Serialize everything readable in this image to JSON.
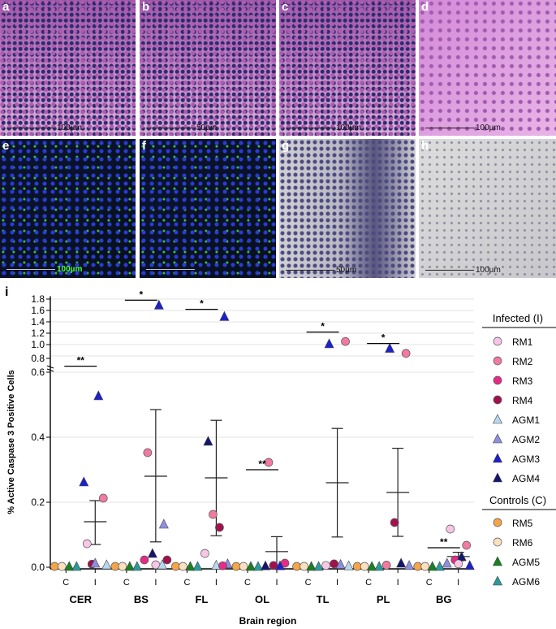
{
  "panels": [
    {
      "label": "a",
      "scale": "100µm",
      "style": "he"
    },
    {
      "label": "b",
      "scale": "50µm",
      "style": "he"
    },
    {
      "label": "c",
      "scale": "100µm",
      "style": "he"
    },
    {
      "label": "d",
      "scale": "100µm",
      "style": "he-light"
    },
    {
      "label": "e",
      "scale": "100µm",
      "style": "fluor"
    },
    {
      "label": "f",
      "scale": "",
      "style": "fluor"
    },
    {
      "label": "g",
      "scale": "50µm",
      "style": "ihc"
    },
    {
      "label": "h",
      "scale": "100µm",
      "style": "ihc-light"
    }
  ],
  "chart_data": {
    "type": "scatter",
    "panel_label": "i",
    "xlabel": "Brain region",
    "ylabel": "% Active Caspase 3 Positive Cells",
    "categories": [
      "CER",
      "BS",
      "FL",
      "OL",
      "TL",
      "PL",
      "BG"
    ],
    "subcategories": [
      "C",
      "I"
    ],
    "y_lower_ticks": [
      "0.0",
      "0.2",
      "0.4",
      "0.6"
    ],
    "y_upper_ticks": [
      "1.0",
      "1.2",
      "1.4",
      "1.6",
      "1.8"
    ],
    "y_upper_extra_tick": "0.8",
    "ylim_lower": [
      0,
      0.6
    ],
    "ylim_upper": [
      0.8,
      1.8
    ],
    "significance": [
      {
        "region": "CER",
        "label": "**",
        "y": 0.62
      },
      {
        "region": "BS",
        "label": "*",
        "y": 1.78
      },
      {
        "region": "FL",
        "label": "*",
        "y": 1.62
      },
      {
        "region": "OL",
        "label": "**",
        "y": 0.3
      },
      {
        "region": "TL",
        "label": "*",
        "y": 1.22
      },
      {
        "region": "PL",
        "label": "*",
        "y": 1.02
      },
      {
        "region": "BG",
        "label": "**",
        "y": 0.06
      }
    ],
    "summary": [
      {
        "region": "CER",
        "mean": 0.14,
        "lo": 0.07,
        "hi": 0.205
      },
      {
        "region": "BS",
        "mean": 0.28,
        "lo": 0.078,
        "hi": 0.485
      },
      {
        "region": "FL",
        "mean": 0.275,
        "lo": 0.097,
        "hi": 0.452
      },
      {
        "region": "OL",
        "mean": 0.048,
        "lo": 0.0,
        "hi": 0.094
      },
      {
        "region": "TL",
        "mean": 0.26,
        "lo": 0.093,
        "hi": 0.427
      },
      {
        "region": "PL",
        "mean": 0.23,
        "lo": 0.095,
        "hi": 0.366
      },
      {
        "region": "BG",
        "mean": 0.033,
        "lo": 0.02,
        "hi": 0.046
      }
    ],
    "points": [
      {
        "region": "CER",
        "group": "C",
        "series": "RM5",
        "y": 0
      },
      {
        "region": "CER",
        "group": "C",
        "series": "RM6",
        "y": 0
      },
      {
        "region": "CER",
        "group": "C",
        "series": "AGM5",
        "y": 0
      },
      {
        "region": "CER",
        "group": "C",
        "series": "AGM6",
        "y": 0
      },
      {
        "region": "CER",
        "group": "I",
        "series": "RM1",
        "y": 0.07
      },
      {
        "region": "CER",
        "group": "I",
        "series": "RM2",
        "y": 0.21
      },
      {
        "region": "CER",
        "group": "I",
        "series": "RM4",
        "y": 0.007
      },
      {
        "region": "CER",
        "group": "I",
        "series": "AGM3",
        "y": 0.525
      },
      {
        "region": "CER",
        "group": "I",
        "series": "AGM3",
        "y": 0.26
      },
      {
        "region": "CER",
        "group": "I",
        "series": "AGM1",
        "y": 0.005
      },
      {
        "region": "CER",
        "group": "I",
        "series": "AGM2",
        "y": 0.01
      },
      {
        "region": "BS",
        "group": "C",
        "series": "RM5",
        "y": 0
      },
      {
        "region": "BS",
        "group": "C",
        "series": "RM6",
        "y": 0
      },
      {
        "region": "BS",
        "group": "C",
        "series": "AGM5",
        "y": 0
      },
      {
        "region": "BS",
        "group": "C",
        "series": "AGM6",
        "y": 0
      },
      {
        "region": "BS",
        "group": "I",
        "series": "RM2",
        "y": 0.35
      },
      {
        "region": "BS",
        "group": "I",
        "series": "AGM2",
        "y": 0.13
      },
      {
        "region": "BS",
        "group": "I",
        "series": "AGM4",
        "y": 0.04
      },
      {
        "region": "BS",
        "group": "I",
        "series": "AGM3",
        "y": 1.68
      },
      {
        "region": "BS",
        "group": "I",
        "series": "RM3",
        "y": 0.02
      },
      {
        "region": "BS",
        "group": "I",
        "series": "RM4",
        "y": 0.02
      },
      {
        "region": "BS",
        "group": "I",
        "series": "RM1",
        "y": 0.005
      },
      {
        "region": "BS",
        "group": "I",
        "series": "AGM1",
        "y": 0.005
      },
      {
        "region": "FL",
        "group": "C",
        "series": "RM5",
        "y": 0
      },
      {
        "region": "FL",
        "group": "C",
        "series": "RM6",
        "y": 0
      },
      {
        "region": "FL",
        "group": "C",
        "series": "AGM5",
        "y": 0
      },
      {
        "region": "FL",
        "group": "C",
        "series": "AGM6",
        "y": 0
      },
      {
        "region": "FL",
        "group": "I",
        "series": "AGM4",
        "y": 0.385
      },
      {
        "region": "FL",
        "group": "I",
        "series": "AGM3",
        "y": 1.48
      },
      {
        "region": "FL",
        "group": "I",
        "series": "RM2",
        "y": 0.16
      },
      {
        "region": "FL",
        "group": "I",
        "series": "RM4",
        "y": 0.12
      },
      {
        "region": "FL",
        "group": "I",
        "series": "RM1",
        "y": 0.04
      },
      {
        "region": "FL",
        "group": "I",
        "series": "AGM2",
        "y": 0.008
      },
      {
        "region": "FL",
        "group": "I",
        "series": "AGM1",
        "y": 0.004
      },
      {
        "region": "FL",
        "group": "I",
        "series": "RM3",
        "y": 0.002
      },
      {
        "region": "OL",
        "group": "C",
        "series": "RM5",
        "y": 0
      },
      {
        "region": "OL",
        "group": "C",
        "series": "RM6",
        "y": 0
      },
      {
        "region": "OL",
        "group": "C",
        "series": "AGM5",
        "y": 0
      },
      {
        "region": "OL",
        "group": "C",
        "series": "AGM6",
        "y": 0
      },
      {
        "region": "OL",
        "group": "I",
        "series": "RM2",
        "y": 0.32
      },
      {
        "region": "OL",
        "group": "I",
        "series": "RM3",
        "y": 0.01
      },
      {
        "region": "OL",
        "group": "I",
        "series": "RM4",
        "y": 0.003
      },
      {
        "region": "OL",
        "group": "I",
        "series": "AGM3",
        "y": 0.002
      },
      {
        "region": "OL",
        "group": "I",
        "series": "AGM4",
        "y": 0.002
      },
      {
        "region": "TL",
        "group": "C",
        "series": "RM5",
        "y": 0
      },
      {
        "region": "TL",
        "group": "C",
        "series": "RM6",
        "y": 0
      },
      {
        "region": "TL",
        "group": "C",
        "series": "AGM5",
        "y": 0
      },
      {
        "region": "TL",
        "group": "C",
        "series": "AGM6",
        "y": 0
      },
      {
        "region": "TL",
        "group": "I",
        "series": "AGM3",
        "y": 1.0
      },
      {
        "region": "TL",
        "group": "I",
        "series": "RM2",
        "y": 1.04
      },
      {
        "region": "TL",
        "group": "I",
        "series": "RM4",
        "y": 0.008
      },
      {
        "region": "TL",
        "group": "I",
        "series": "AGM2",
        "y": 0.006
      },
      {
        "region": "TL",
        "group": "I",
        "series": "RM1",
        "y": 0.003
      },
      {
        "region": "TL",
        "group": "I",
        "series": "AGM1",
        "y": 0.002
      },
      {
        "region": "PL",
        "group": "C",
        "series": "RM5",
        "y": 0
      },
      {
        "region": "PL",
        "group": "C",
        "series": "RM6",
        "y": 0
      },
      {
        "region": "PL",
        "group": "C",
        "series": "AGM5",
        "y": 0
      },
      {
        "region": "PL",
        "group": "C",
        "series": "AGM6",
        "y": 0
      },
      {
        "region": "PL",
        "group": "I",
        "series": "AGM3",
        "y": 0.92
      },
      {
        "region": "PL",
        "group": "I",
        "series": "RM2",
        "y": 0.83
      },
      {
        "region": "PL",
        "group": "I",
        "series": "RM4",
        "y": 0.135
      },
      {
        "region": "PL",
        "group": "I",
        "series": "AGM4",
        "y": 0.01
      },
      {
        "region": "PL",
        "group": "I",
        "series": "RM2",
        "y": 0.004
      },
      {
        "region": "PL",
        "group": "I",
        "series": "AGM2",
        "y": 0.003
      },
      {
        "region": "BG",
        "group": "C",
        "series": "RM5",
        "y": 0
      },
      {
        "region": "BG",
        "group": "C",
        "series": "RM6",
        "y": 0
      },
      {
        "region": "BG",
        "group": "C",
        "series": "AGM5",
        "y": 0
      },
      {
        "region": "BG",
        "group": "C",
        "series": "AGM6",
        "y": 0
      },
      {
        "region": "BG",
        "group": "I",
        "series": "RM1",
        "y": 0.115
      },
      {
        "region": "BG",
        "group": "I",
        "series": "RM2",
        "y": 0.065
      },
      {
        "region": "BG",
        "group": "I",
        "series": "RM3",
        "y": 0.02
      },
      {
        "region": "BG",
        "group": "I",
        "series": "AGM4",
        "y": 0.03
      },
      {
        "region": "BG",
        "group": "I",
        "series": "AGM2",
        "y": 0.01
      },
      {
        "region": "BG",
        "group": "I",
        "series": "AGM3",
        "y": 0.003
      },
      {
        "region": "BG",
        "group": "I",
        "series": "RM1",
        "y": 0.008
      }
    ],
    "legend": {
      "infected_title": "Infected (I)",
      "controls_title": "Controls (C)",
      "infected": [
        {
          "name": "RM1",
          "shape": "circle",
          "color": "#f7c6e6"
        },
        {
          "name": "RM2",
          "shape": "circle",
          "color": "#f07aa0"
        },
        {
          "name": "RM3",
          "shape": "circle",
          "color": "#e62b86"
        },
        {
          "name": "RM4",
          "shape": "circle",
          "color": "#a0124e"
        },
        {
          "name": "AGM1",
          "shape": "triangle",
          "color": "#b7d7f0"
        },
        {
          "name": "AGM2",
          "shape": "triangle",
          "color": "#8f8ee0"
        },
        {
          "name": "AGM3",
          "shape": "triangle",
          "color": "#1d21c8"
        },
        {
          "name": "AGM4",
          "shape": "triangle",
          "color": "#14166e"
        }
      ],
      "controls": [
        {
          "name": "RM5",
          "shape": "circle",
          "color": "#f5a548"
        },
        {
          "name": "RM6",
          "shape": "circle",
          "color": "#fbe0c0"
        },
        {
          "name": "AGM5",
          "shape": "triangle",
          "color": "#1b7f24"
        },
        {
          "name": "AGM6",
          "shape": "triangle",
          "color": "#2a9a9a"
        }
      ]
    }
  }
}
